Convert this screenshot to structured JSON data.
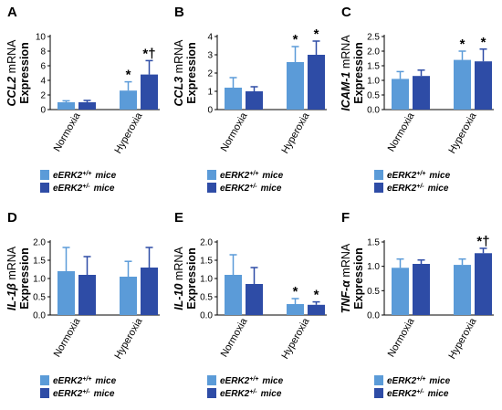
{
  "colors": {
    "wt": "#5b9bd8",
    "het": "#2e4ca6",
    "axis": "#000000"
  },
  "legend": {
    "wt_label": "eERK2",
    "wt_sup": "+/+",
    "het_label": "eERK2",
    "het_sup": "+/-",
    "suffix": "mice"
  },
  "chart_data": [
    {
      "panel": "A",
      "type": "bar",
      "ylabel_gene": "CCL2",
      "ylabel_rest": "mRNA",
      "ylabel_line2": "Expression",
      "categories": [
        "Normoxia",
        "Hyperoxia"
      ],
      "ylim": [
        0,
        10
      ],
      "yticks": [
        "0",
        "2",
        "4",
        "6",
        "8",
        "10"
      ],
      "series": [
        {
          "key": "wt",
          "values": [
            1.0,
            2.6
          ],
          "errors": [
            0.2,
            1.2
          ],
          "marks": [
            "",
            "*"
          ]
        },
        {
          "key": "het",
          "values": [
            1.0,
            4.8
          ],
          "errors": [
            0.25,
            1.9
          ],
          "marks": [
            "",
            "*†"
          ]
        }
      ]
    },
    {
      "panel": "B",
      "type": "bar",
      "ylabel_gene": "CCL3",
      "ylabel_rest": "mRNA",
      "ylabel_line2": "Expression",
      "categories": [
        "Normoxia",
        "Hyperoxia"
      ],
      "ylim": [
        0,
        4
      ],
      "yticks": [
        "0",
        "1",
        "2",
        "3",
        "4"
      ],
      "series": [
        {
          "key": "wt",
          "values": [
            1.2,
            2.6
          ],
          "errors": [
            0.55,
            0.85
          ],
          "marks": [
            "",
            "*"
          ]
        },
        {
          "key": "het",
          "values": [
            1.0,
            3.0
          ],
          "errors": [
            0.25,
            0.75
          ],
          "marks": [
            "",
            "*"
          ]
        }
      ]
    },
    {
      "panel": "C",
      "type": "bar",
      "ylabel_gene": "ICAM-1",
      "ylabel_rest": "mRNA",
      "ylabel_line2": "Expression",
      "categories": [
        "Normoxia",
        "Hyperoxia"
      ],
      "ylim": [
        0,
        2.5
      ],
      "yticks": [
        "0.0",
        "0.5",
        "1.0",
        "1.5",
        "2.0",
        "2.5"
      ],
      "series": [
        {
          "key": "wt",
          "values": [
            1.05,
            1.7
          ],
          "errors": [
            0.25,
            0.3
          ],
          "marks": [
            "",
            "*"
          ]
        },
        {
          "key": "het",
          "values": [
            1.15,
            1.65
          ],
          "errors": [
            0.2,
            0.42
          ],
          "marks": [
            "",
            "*"
          ]
        }
      ]
    },
    {
      "panel": "D",
      "type": "bar",
      "ylabel_gene": "IL-1β",
      "ylabel_rest": "mRNA",
      "ylabel_line2": "Expression",
      "categories": [
        "Normoxia",
        "Hyperoxia"
      ],
      "ylim": [
        0,
        2.0
      ],
      "yticks": [
        "0.0",
        "0.5",
        "1.0",
        "1.5",
        "2.0"
      ],
      "series": [
        {
          "key": "wt",
          "values": [
            1.2,
            1.05
          ],
          "errors": [
            0.65,
            0.42
          ],
          "marks": [
            "",
            ""
          ]
        },
        {
          "key": "het",
          "values": [
            1.1,
            1.3
          ],
          "errors": [
            0.5,
            0.55
          ],
          "marks": [
            "",
            ""
          ]
        }
      ]
    },
    {
      "panel": "E",
      "type": "bar",
      "ylabel_gene": "IL-10",
      "ylabel_rest": "mRNA",
      "ylabel_line2": "Expression",
      "categories": [
        "Normoxia",
        "Hyperoxia"
      ],
      "ylim": [
        0,
        2.0
      ],
      "yticks": [
        "0.0",
        "0.5",
        "1.0",
        "1.5",
        "2.0"
      ],
      "series": [
        {
          "key": "wt",
          "values": [
            1.1,
            0.3
          ],
          "errors": [
            0.55,
            0.15
          ],
          "marks": [
            "",
            "*"
          ]
        },
        {
          "key": "het",
          "values": [
            0.85,
            0.28
          ],
          "errors": [
            0.45,
            0.08
          ],
          "marks": [
            "",
            "*"
          ]
        }
      ]
    },
    {
      "panel": "F",
      "type": "bar",
      "ylabel_gene": "TNF-α",
      "ylabel_rest": "mRNA",
      "ylabel_line2": "Expression",
      "categories": [
        "Normoxia",
        "Hyperoxia"
      ],
      "ylim": [
        0,
        1.5
      ],
      "yticks": [
        "0.0",
        "0.5",
        "1.0",
        "1.5"
      ],
      "series": [
        {
          "key": "wt",
          "values": [
            0.97,
            1.03
          ],
          "errors": [
            0.18,
            0.12
          ],
          "marks": [
            "",
            ""
          ]
        },
        {
          "key": "het",
          "values": [
            1.05,
            1.27
          ],
          "errors": [
            0.08,
            0.1
          ],
          "marks": [
            "",
            "*†"
          ]
        }
      ]
    }
  ]
}
